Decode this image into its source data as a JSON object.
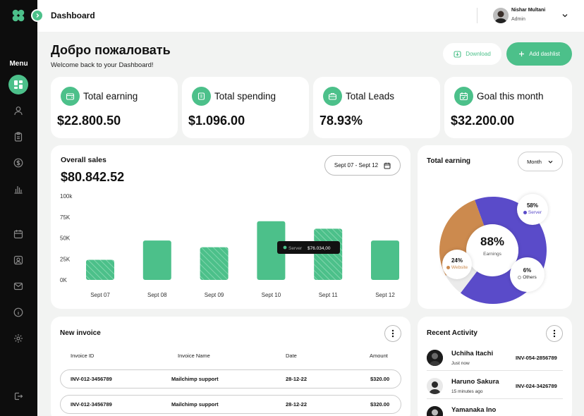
{
  "header": {
    "title": "Dashboard",
    "user": {
      "name": "Nishar Multani",
      "role": "Admin"
    }
  },
  "sidebar": {
    "menu_label": "Menu",
    "items": [
      {
        "icon": "dashboard-icon",
        "active": true
      },
      {
        "icon": "user-icon"
      },
      {
        "icon": "clipboard-icon"
      },
      {
        "icon": "dollar-icon"
      },
      {
        "icon": "bar-chart-icon"
      },
      {
        "icon": "calendar-icon"
      },
      {
        "icon": "contacts-icon"
      },
      {
        "icon": "mail-icon"
      },
      {
        "icon": "info-icon"
      },
      {
        "icon": "settings-icon"
      },
      {
        "icon": "logout-icon"
      }
    ]
  },
  "welcome": {
    "title": "Добро пожаловать",
    "subtitle": "Welcome back to your Dashboard!",
    "download_label": "Download",
    "add_label": "Add dashlist"
  },
  "stats": [
    {
      "label": "Total earning",
      "value": "$22.800.50",
      "icon": "wallet-icon"
    },
    {
      "label": "Total spending",
      "value": "$1.096.00",
      "icon": "receipt-icon"
    },
    {
      "label": "Total Leads",
      "value": "78.93%",
      "icon": "briefcase-icon"
    },
    {
      "label": "Goal this month",
      "value": "$32.200.00",
      "icon": "calendar-check-icon"
    }
  ],
  "sales": {
    "title": "Overall sales",
    "total": "$80.842.52",
    "date_range": "Sept 07 - Sept 12",
    "tooltip": {
      "label": "Server",
      "value": "$76.034,00"
    }
  },
  "chart_data": {
    "type": "bar",
    "categories": [
      "Sept 07",
      "Sept 08",
      "Sept 09",
      "Sept 10",
      "Sept 11",
      "Sept 12"
    ],
    "values": [
      24,
      47,
      39,
      70,
      61,
      47
    ],
    "hatched": [
      true,
      false,
      true,
      false,
      true,
      false
    ],
    "ylim": [
      0,
      100
    ],
    "yticks": [
      "100k",
      "75K",
      "50K",
      "25K",
      "0K"
    ],
    "ytick_values": [
      100,
      75,
      50,
      25,
      0
    ],
    "color": "#4cc08a",
    "grid": false
  },
  "total_earning": {
    "title": "Total earning",
    "period": "Month",
    "center_pct": "88%",
    "center_label": "Earnings",
    "segments": [
      {
        "name": "Server",
        "pct": "58%",
        "value": 58,
        "color": "#5a4bc9"
      },
      {
        "name": "Others",
        "pct": "6%",
        "value": 6,
        "color": "#ebebeb"
      },
      {
        "name": "Website",
        "pct": "24%",
        "value": 24,
        "color": "#cc8a4e"
      }
    ]
  },
  "invoice": {
    "title": "New invoice",
    "columns": [
      "Invoice ID",
      "Invoice Name",
      "Date",
      "Amount"
    ],
    "rows": [
      {
        "id": "INV-012-3456789",
        "name": "Mailchimp support",
        "date": "28-12-22",
        "amount": "$320.00"
      },
      {
        "id": "INV-012-3456789",
        "name": "Mailchimp support",
        "date": "28-12-22",
        "amount": "$320.00"
      }
    ]
  },
  "activity": {
    "title": "Recent Activity",
    "items": [
      {
        "name": "Uchiha Itachi",
        "time": "Just now",
        "code": "INV-054-2856789"
      },
      {
        "name": "Haruno Sakura",
        "time": "15 minutes ago",
        "code": "INV-024-3426789"
      },
      {
        "name": "Yamanaka Ino",
        "time": "",
        "code": ""
      }
    ]
  }
}
